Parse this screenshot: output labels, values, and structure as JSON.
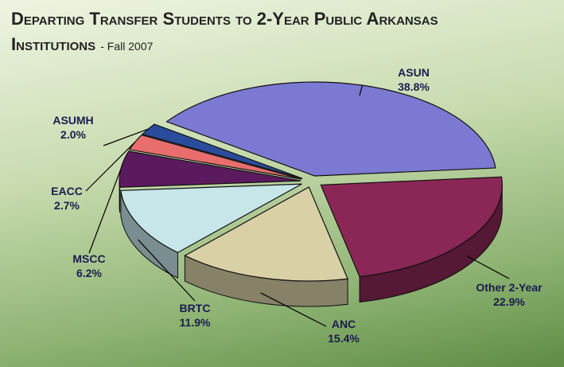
{
  "chart_data": {
    "type": "pie",
    "title": "Departing Transfer Students to 2-Year Public Arkansas Institutions",
    "subtitle": "- Fall 2007",
    "categories": [
      "ASUN",
      "Other 2-Year",
      "ANC",
      "BRTC",
      "MSCC",
      "EACC",
      "ASUMH"
    ],
    "values": [
      38.8,
      22.9,
      15.4,
      11.9,
      6.2,
      2.7,
      2.0
    ],
    "value_labels": [
      "38.8%",
      "22.9%",
      "15.4%",
      "11.9%",
      "6.2%",
      "2.7%",
      "2.0%"
    ],
    "colors": [
      "#7b79d2",
      "#8a2756",
      "#d9d0a6",
      "#c6e6ea",
      "#5c1a5e",
      "#e86e6e",
      "#2b4c9c"
    ]
  }
}
